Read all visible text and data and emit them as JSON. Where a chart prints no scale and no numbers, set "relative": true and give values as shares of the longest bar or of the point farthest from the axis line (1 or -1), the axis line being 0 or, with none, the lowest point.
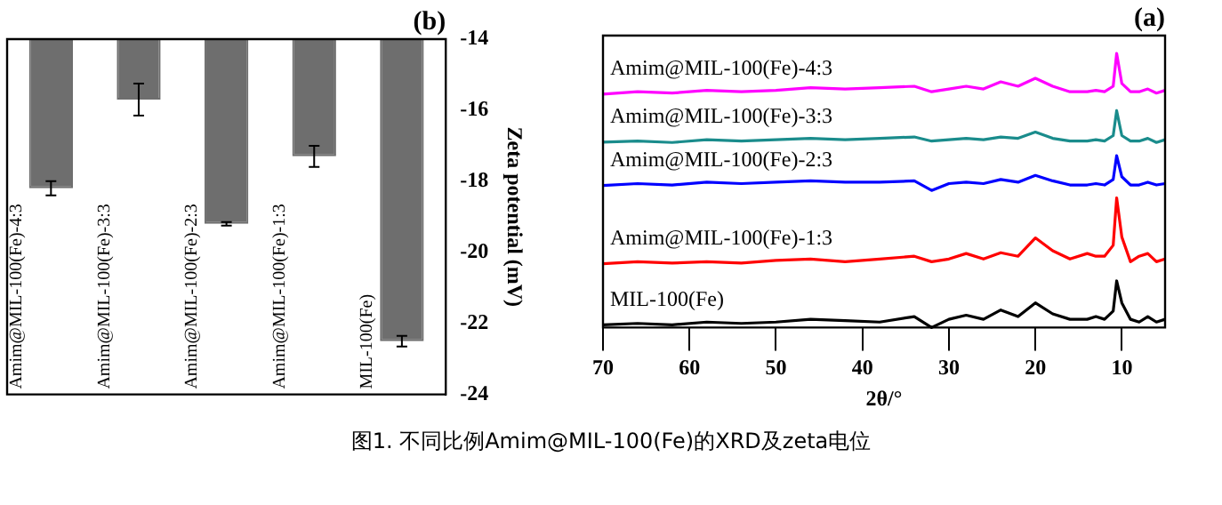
{
  "chart_data": [
    {
      "type": "bar",
      "title": "(b)",
      "ylabel": "Zeta potential (mV)",
      "categories": [
        "Amim@MIL-100(Fe)-4:3",
        "Amim@MIL-100(Fe)-3:3",
        "Amim@MIL-100(Fe)-2:3",
        "Amim@MIL-100(Fe)-1:3",
        "MIL-100(Fe)"
      ],
      "values": [
        -18.2,
        -15.7,
        -19.2,
        -17.3,
        -22.5
      ],
      "errors": [
        0.2,
        0.45,
        0.05,
        0.3,
        0.15
      ],
      "color": "#6e6e6e",
      "ylim": [
        -24,
        -14
      ],
      "yticks": [
        -24,
        -22,
        -20,
        -18,
        -16,
        -14
      ],
      "grid": false,
      "legend": false,
      "annotations": [
        "图1. 不同比例Amim@MIL-100(Fe)的XRD及zeta电位"
      ]
    },
    {
      "type": "line",
      "title": "(a)",
      "xlabel": "2θ/°",
      "relative": true,
      "legend": false,
      "grid": false,
      "x": [
        70,
        66,
        62,
        58,
        54,
        50,
        46,
        42,
        38,
        34,
        32,
        30,
        28,
        26,
        24,
        22,
        20,
        18,
        16,
        14,
        13,
        12,
        11,
        10.6,
        10,
        9,
        8,
        7,
        6,
        5
      ],
      "xlim": [
        70,
        5
      ],
      "xticks": [
        70,
        60,
        50,
        40,
        30,
        20,
        10
      ],
      "series": [
        {
          "name": "Amim@MIL-100(Fe)-4:3",
          "color": "#ff00ff",
          "values": [
            0.851,
            0.86,
            0.855,
            0.865,
            0.86,
            0.865,
            0.875,
            0.87,
            0.875,
            0.88,
            0.86,
            0.87,
            0.88,
            0.87,
            0.896,
            0.88,
            0.909,
            0.88,
            0.86,
            0.86,
            0.865,
            0.86,
            0.88,
            1.0,
            0.89,
            0.86,
            0.86,
            0.87,
            0.855,
            0.865
          ]
        },
        {
          "name": "Amim@MIL-100(Fe)-3:3",
          "color": "#1a8c8c",
          "values": [
            0.676,
            0.68,
            0.675,
            0.685,
            0.68,
            0.685,
            0.69,
            0.685,
            0.69,
            0.695,
            0.68,
            0.685,
            0.69,
            0.685,
            0.695,
            0.69,
            0.713,
            0.69,
            0.68,
            0.68,
            0.685,
            0.68,
            0.7,
            0.791,
            0.7,
            0.68,
            0.68,
            0.69,
            0.675,
            0.685
          ]
        },
        {
          "name": "Amim@MIL-100(Fe)-2:3",
          "color": "#0000ff",
          "values": [
            0.518,
            0.525,
            0.52,
            0.53,
            0.525,
            0.53,
            0.535,
            0.53,
            0.53,
            0.535,
            0.5,
            0.525,
            0.53,
            0.525,
            0.54,
            0.53,
            0.555,
            0.535,
            0.52,
            0.52,
            0.525,
            0.52,
            0.54,
            0.627,
            0.55,
            0.52,
            0.52,
            0.53,
            0.52,
            0.525
          ]
        },
        {
          "name": "Amim@MIL-100(Fe)-1:3",
          "color": "#ff0000",
          "values": [
            0.233,
            0.24,
            0.235,
            0.24,
            0.235,
            0.245,
            0.25,
            0.24,
            0.25,
            0.26,
            0.24,
            0.25,
            0.27,
            0.25,
            0.273,
            0.26,
            0.327,
            0.28,
            0.25,
            0.27,
            0.26,
            0.26,
            0.3,
            0.473,
            0.33,
            0.24,
            0.26,
            0.27,
            0.24,
            0.25
          ]
        },
        {
          "name": "MIL-100(Fe)",
          "color": "#000000",
          "values": [
            0.01,
            0.015,
            0.01,
            0.02,
            0.015,
            0.02,
            0.03,
            0.025,
            0.02,
            0.04,
            0.0,
            0.03,
            0.045,
            0.03,
            0.064,
            0.04,
            0.09,
            0.05,
            0.03,
            0.03,
            0.04,
            0.03,
            0.06,
            0.17,
            0.09,
            0.03,
            0.02,
            0.04,
            0.02,
            0.03
          ]
        }
      ]
    }
  ]
}
